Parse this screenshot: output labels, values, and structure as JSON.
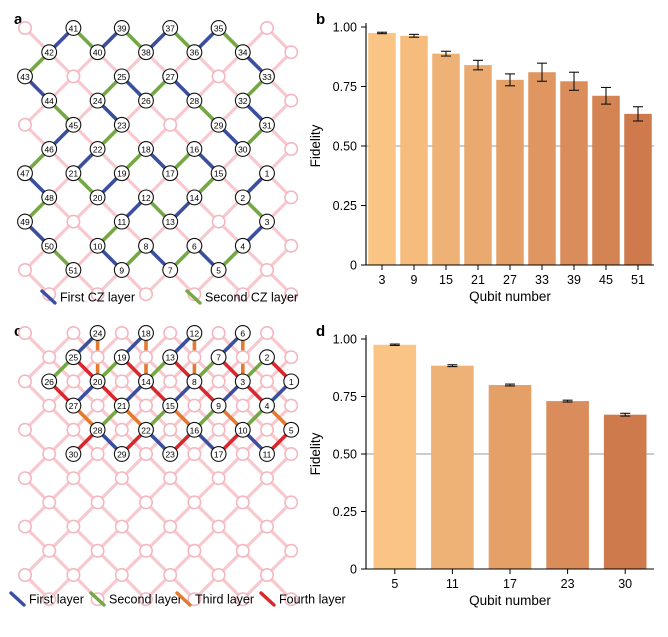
{
  "panels": {
    "a": "a",
    "b": "b",
    "c": "c",
    "d": "d"
  },
  "colors": {
    "grid_edge": "#f7c9cf",
    "grid_node_fill": "#ffffff",
    "grid_node_stroke": "#f4b6bf",
    "first_layer": "#3a4fa0",
    "second_layer": "#73a843",
    "third_layer": "#e27a2f",
    "fourth_layer": "#d8272d",
    "threshold_line": "#9a9a9a",
    "bar_light": "#fac584",
    "bar_dark": "#cf7a4c"
  },
  "legend_a": [
    {
      "label": "First CZ layer",
      "color_key": "first_layer"
    },
    {
      "label": "Second CZ layer",
      "color_key": "second_layer"
    }
  ],
  "legend_c": [
    {
      "label": "First layer",
      "color_key": "first_layer"
    },
    {
      "label": "Second layer",
      "color_key": "second_layer"
    },
    {
      "label": "Third layer",
      "color_key": "third_layer"
    },
    {
      "label": "Fourth layer",
      "color_key": "fourth_layer"
    }
  ],
  "chart_data": [
    {
      "panel": "b",
      "type": "bar",
      "categories": [
        "3",
        "9",
        "15",
        "21",
        "27",
        "33",
        "39",
        "45",
        "51"
      ],
      "values": [
        0.975,
        0.963,
        0.888,
        0.84,
        0.778,
        0.81,
        0.772,
        0.711,
        0.635
      ],
      "errors": [
        0.003,
        0.006,
        0.01,
        0.02,
        0.025,
        0.038,
        0.038,
        0.035,
        0.03
      ],
      "threshold": 0.5,
      "xlabel": "Qubit number",
      "ylabel": "Fidelity",
      "ylim": [
        0,
        1.0
      ],
      "yticks": [
        "0",
        "0.25",
        "0.50",
        "0.75",
        "1.00"
      ]
    },
    {
      "panel": "d",
      "type": "bar",
      "categories": [
        "5",
        "11",
        "17",
        "23",
        "30"
      ],
      "values": [
        0.975,
        0.884,
        0.8,
        0.73,
        0.671
      ],
      "errors": [
        0.003,
        0.004,
        0.004,
        0.004,
        0.006
      ],
      "threshold": 0.5,
      "xlabel": "Qubit number",
      "ylabel": "Fidelity",
      "ylim": [
        0,
        1.0
      ],
      "yticks": [
        "0",
        "0.25",
        "0.50",
        "0.75",
        "1.00"
      ]
    },
    {
      "panel": "a",
      "type": "diagram",
      "qubits": [
        {
          "id": "41",
          "ix": 2,
          "iy": 0
        },
        {
          "id": "39",
          "ix": 4,
          "iy": 0
        },
        {
          "id": "37",
          "ix": 6,
          "iy": 0
        },
        {
          "id": "35",
          "ix": 8,
          "iy": 0
        },
        {
          "id": "42",
          "ix": 1,
          "iy": 1
        },
        {
          "id": "40",
          "ix": 3,
          "iy": 1
        },
        {
          "id": "38",
          "ix": 5,
          "iy": 1
        },
        {
          "id": "36",
          "ix": 7,
          "iy": 1
        },
        {
          "id": "34",
          "ix": 9,
          "iy": 1
        },
        {
          "id": "43",
          "ix": 0,
          "iy": 2
        },
        {
          "id": "25",
          "ix": 4,
          "iy": 2
        },
        {
          "id": "27",
          "ix": 6,
          "iy": 2
        },
        {
          "id": "33",
          "ix": 10,
          "iy": 2
        },
        {
          "id": "44",
          "ix": 1,
          "iy": 3
        },
        {
          "id": "24",
          "ix": 3,
          "iy": 3
        },
        {
          "id": "26",
          "ix": 5,
          "iy": 3
        },
        {
          "id": "28",
          "ix": 7,
          "iy": 3
        },
        {
          "id": "32",
          "ix": 9,
          "iy": 3
        },
        {
          "id": "45",
          "ix": 2,
          "iy": 4
        },
        {
          "id": "23",
          "ix": 4,
          "iy": 4
        },
        {
          "id": "29",
          "ix": 8,
          "iy": 4
        },
        {
          "id": "31",
          "ix": 10,
          "iy": 4
        },
        {
          "id": "46",
          "ix": 1,
          "iy": 5
        },
        {
          "id": "22",
          "ix": 3,
          "iy": 5
        },
        {
          "id": "18",
          "ix": 5,
          "iy": 5
        },
        {
          "id": "16",
          "ix": 7,
          "iy": 5
        },
        {
          "id": "30",
          "ix": 9,
          "iy": 5
        },
        {
          "id": "47",
          "ix": 0,
          "iy": 6
        },
        {
          "id": "21",
          "ix": 2,
          "iy": 6
        },
        {
          "id": "19",
          "ix": 4,
          "iy": 6
        },
        {
          "id": "17",
          "ix": 6,
          "iy": 6
        },
        {
          "id": "15",
          "ix": 8,
          "iy": 6
        },
        {
          "id": "1",
          "ix": 10,
          "iy": 6
        },
        {
          "id": "48",
          "ix": 1,
          "iy": 7
        },
        {
          "id": "20",
          "ix": 3,
          "iy": 7
        },
        {
          "id": "12",
          "ix": 5,
          "iy": 7
        },
        {
          "id": "14",
          "ix": 7,
          "iy": 7
        },
        {
          "id": "2",
          "ix": 9,
          "iy": 7
        },
        {
          "id": "49",
          "ix": 0,
          "iy": 8
        },
        {
          "id": "11",
          "ix": 4,
          "iy": 8
        },
        {
          "id": "13",
          "ix": 6,
          "iy": 8
        },
        {
          "id": "3",
          "ix": 10,
          "iy": 8
        },
        {
          "id": "50",
          "ix": 1,
          "iy": 9
        },
        {
          "id": "10",
          "ix": 3,
          "iy": 9
        },
        {
          "id": "8",
          "ix": 5,
          "iy": 9
        },
        {
          "id": "6",
          "ix": 7,
          "iy": 9
        },
        {
          "id": "4",
          "ix": 9,
          "iy": 9
        },
        {
          "id": "51",
          "ix": 2,
          "iy": 10
        },
        {
          "id": "9",
          "ix": 4,
          "iy": 10
        },
        {
          "id": "7",
          "ix": 6,
          "iy": 10
        },
        {
          "id": "5",
          "ix": 8,
          "iy": 10
        }
      ],
      "couplings": [
        [
          "1",
          "2",
          "first_layer"
        ],
        [
          "2",
          "3",
          "second_layer"
        ],
        [
          "3",
          "4",
          "first_layer"
        ],
        [
          "4",
          "5",
          "second_layer"
        ],
        [
          "5",
          "6",
          "first_layer"
        ],
        [
          "6",
          "7",
          "second_layer"
        ],
        [
          "7",
          "8",
          "first_layer"
        ],
        [
          "8",
          "9",
          "second_layer"
        ],
        [
          "9",
          "10",
          "first_layer"
        ],
        [
          "10",
          "11",
          "second_layer"
        ],
        [
          "11",
          "12",
          "first_layer"
        ],
        [
          "12",
          "13",
          "second_layer"
        ],
        [
          "13",
          "14",
          "first_layer"
        ],
        [
          "14",
          "15",
          "second_layer"
        ],
        [
          "15",
          "16",
          "first_layer"
        ],
        [
          "16",
          "17",
          "second_layer"
        ],
        [
          "17",
          "18",
          "first_layer"
        ],
        [
          "18",
          "19",
          "second_layer"
        ],
        [
          "19",
          "20",
          "first_layer"
        ],
        [
          "20",
          "21",
          "second_layer"
        ],
        [
          "21",
          "22",
          "first_layer"
        ],
        [
          "22",
          "23",
          "second_layer"
        ],
        [
          "23",
          "24",
          "first_layer"
        ],
        [
          "24",
          "25",
          "second_layer"
        ],
        [
          "25",
          "26",
          "first_layer"
        ],
        [
          "26",
          "27",
          "second_layer"
        ],
        [
          "27",
          "28",
          "first_layer"
        ],
        [
          "28",
          "29",
          "second_layer"
        ],
        [
          "29",
          "30",
          "first_layer"
        ],
        [
          "30",
          "31",
          "second_layer"
        ],
        [
          "31",
          "32",
          "first_layer"
        ],
        [
          "32",
          "33",
          "second_layer"
        ],
        [
          "33",
          "34",
          "first_layer"
        ],
        [
          "34",
          "35",
          "second_layer"
        ],
        [
          "35",
          "36",
          "first_layer"
        ],
        [
          "36",
          "37",
          "second_layer"
        ],
        [
          "37",
          "38",
          "first_layer"
        ],
        [
          "38",
          "39",
          "second_layer"
        ],
        [
          "39",
          "40",
          "first_layer"
        ],
        [
          "40",
          "41",
          "second_layer"
        ],
        [
          "41",
          "42",
          "first_layer"
        ],
        [
          "42",
          "43",
          "second_layer"
        ],
        [
          "43",
          "44",
          "first_layer"
        ],
        [
          "44",
          "45",
          "second_layer"
        ],
        [
          "45",
          "46",
          "first_layer"
        ],
        [
          "46",
          "47",
          "second_layer"
        ],
        [
          "47",
          "48",
          "first_layer"
        ],
        [
          "48",
          "49",
          "second_layer"
        ],
        [
          "49",
          "50",
          "first_layer"
        ],
        [
          "50",
          "51",
          "second_layer"
        ]
      ]
    },
    {
      "panel": "c",
      "type": "diagram",
      "qubits": [
        {
          "id": "24",
          "ix": 3,
          "iy": 0
        },
        {
          "id": "18",
          "ix": 5,
          "iy": 0
        },
        {
          "id": "12",
          "ix": 7,
          "iy": 0
        },
        {
          "id": "6",
          "ix": 9,
          "iy": 0
        },
        {
          "id": "25",
          "ix": 2,
          "iy": 1
        },
        {
          "id": "19",
          "ix": 4,
          "iy": 1
        },
        {
          "id": "13",
          "ix": 6,
          "iy": 1
        },
        {
          "id": "7",
          "ix": 8,
          "iy": 1
        },
        {
          "id": "2",
          "ix": 10,
          "iy": 1
        },
        {
          "id": "26",
          "ix": 1,
          "iy": 2
        },
        {
          "id": "20",
          "ix": 3,
          "iy": 2
        },
        {
          "id": "14",
          "ix": 5,
          "iy": 2
        },
        {
          "id": "8",
          "ix": 7,
          "iy": 2
        },
        {
          "id": "3",
          "ix": 9,
          "iy": 2
        },
        {
          "id": "1",
          "ix": 11,
          "iy": 2
        },
        {
          "id": "27",
          "ix": 2,
          "iy": 3
        },
        {
          "id": "21",
          "ix": 4,
          "iy": 3
        },
        {
          "id": "15",
          "ix": 6,
          "iy": 3
        },
        {
          "id": "9",
          "ix": 8,
          "iy": 3
        },
        {
          "id": "4",
          "ix": 10,
          "iy": 3
        },
        {
          "id": "28",
          "ix": 3,
          "iy": 4
        },
        {
          "id": "22",
          "ix": 5,
          "iy": 4
        },
        {
          "id": "16",
          "ix": 7,
          "iy": 4
        },
        {
          "id": "10",
          "ix": 9,
          "iy": 4
        },
        {
          "id": "5",
          "ix": 11,
          "iy": 4
        },
        {
          "id": "30",
          "ix": 2,
          "iy": 5
        },
        {
          "id": "29",
          "ix": 4,
          "iy": 5
        },
        {
          "id": "23",
          "ix": 6,
          "iy": 5
        },
        {
          "id": "17",
          "ix": 8,
          "iy": 5
        },
        {
          "id": "11",
          "ix": 10,
          "iy": 5
        }
      ],
      "couplings": [
        [
          "24",
          "25",
          "first_layer"
        ],
        [
          "24",
          "20",
          "third_layer"
        ],
        [
          "18",
          "19",
          "first_layer"
        ],
        [
          "18",
          "14",
          "third_layer"
        ],
        [
          "12",
          "13",
          "first_layer"
        ],
        [
          "12",
          "8",
          "third_layer"
        ],
        [
          "6",
          "7",
          "first_layer"
        ],
        [
          "6",
          "3",
          "third_layer"
        ],
        [
          "25",
          "26",
          "second_layer"
        ],
        [
          "25",
          "20",
          "fourth_layer"
        ],
        [
          "19",
          "20",
          "second_layer"
        ],
        [
          "19",
          "14",
          "fourth_layer"
        ],
        [
          "13",
          "14",
          "second_layer"
        ],
        [
          "13",
          "8",
          "fourth_layer"
        ],
        [
          "7",
          "8",
          "second_layer"
        ],
        [
          "7",
          "3",
          "fourth_layer"
        ],
        [
          "2",
          "3",
          "second_layer"
        ],
        [
          "2",
          "1",
          "fourth_layer"
        ],
        [
          "26",
          "27",
          "fourth_layer"
        ],
        [
          "20",
          "21",
          "fourth_layer"
        ],
        [
          "20",
          "27",
          "first_layer"
        ],
        [
          "14",
          "15",
          "fourth_layer"
        ],
        [
          "14",
          "21",
          "first_layer"
        ],
        [
          "8",
          "9",
          "fourth_layer"
        ],
        [
          "8",
          "15",
          "first_layer"
        ],
        [
          "3",
          "4",
          "fourth_layer"
        ],
        [
          "3",
          "9",
          "first_layer"
        ],
        [
          "1",
          "4",
          "first_layer"
        ],
        [
          "27",
          "28",
          "third_layer"
        ],
        [
          "21",
          "22",
          "third_layer"
        ],
        [
          "21",
          "28",
          "second_layer"
        ],
        [
          "15",
          "16",
          "third_layer"
        ],
        [
          "15",
          "22",
          "second_layer"
        ],
        [
          "9",
          "10",
          "third_layer"
        ],
        [
          "9",
          "16",
          "second_layer"
        ],
        [
          "4",
          "5",
          "third_layer"
        ],
        [
          "4",
          "10",
          "second_layer"
        ],
        [
          "28",
          "30",
          "fourth_layer"
        ],
        [
          "28",
          "29",
          "first_layer"
        ],
        [
          "22",
          "29",
          "fourth_layer"
        ],
        [
          "22",
          "23",
          "first_layer"
        ],
        [
          "16",
          "23",
          "fourth_layer"
        ],
        [
          "16",
          "17",
          "first_layer"
        ],
        [
          "10",
          "17",
          "fourth_layer"
        ],
        [
          "10",
          "11",
          "first_layer"
        ],
        [
          "5",
          "11",
          "fourth_layer"
        ]
      ]
    }
  ]
}
